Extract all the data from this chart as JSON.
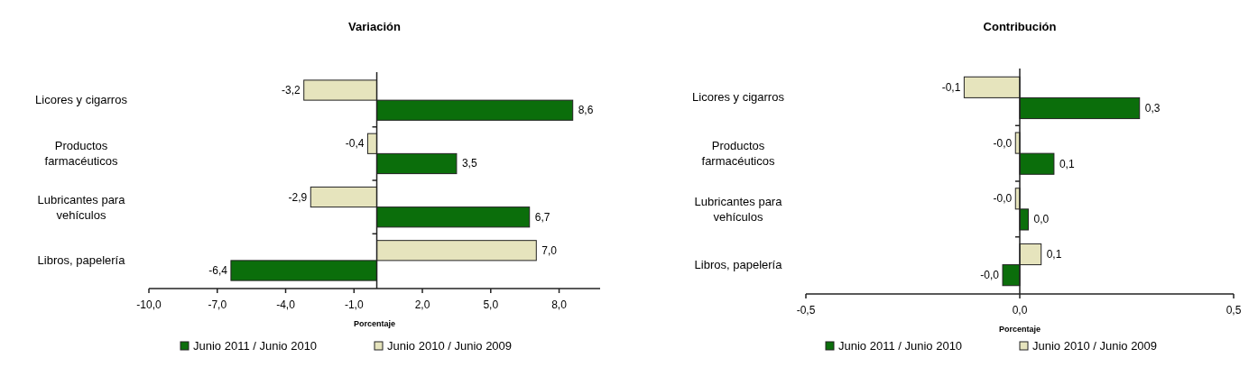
{
  "chart_data": [
    {
      "type": "bar",
      "orientation": "horizontal",
      "title": "Variación",
      "xlabel": "Porcentaje",
      "categories": [
        "Licores y cigarros",
        "Productos farmacéuticos",
        "Lubricantes para vehículos",
        "Libros, papelería"
      ],
      "xlim": [
        -10,
        9.8
      ],
      "xticks": [
        {
          "value": -10,
          "label": "-10,0"
        },
        {
          "value": -7,
          "label": "-7,0"
        },
        {
          "value": -4,
          "label": "-4,0"
        },
        {
          "value": -1,
          "label": "-1,0"
        },
        {
          "value": 2,
          "label": "2,0"
        },
        {
          "value": 5,
          "label": "5,0"
        },
        {
          "value": 8,
          "label": "8,0"
        }
      ],
      "legend": "bottom",
      "series": [
        {
          "name": "Junio 2011 / Junio 2010",
          "color": "#0b6e0b",
          "values": [
            8.6,
            3.5,
            6.7,
            -6.4
          ],
          "value_labels": [
            "8,6",
            "3,5",
            "6,7",
            "-6,4"
          ]
        },
        {
          "name": "Junio 2010 / Junio 2009",
          "color": "#e6e4bd",
          "values": [
            -3.2,
            -0.4,
            -2.9,
            7.0
          ],
          "value_labels": [
            "-3,2",
            "-0,4",
            "-2,9",
            "7,0"
          ]
        }
      ]
    },
    {
      "type": "bar",
      "orientation": "horizontal",
      "title": "Contribución",
      "xlabel": "Porcentaje",
      "categories": [
        "Licores y cigarros",
        "Productos farmacéuticos",
        "Lubricantes para vehículos",
        "Libros, papelería"
      ],
      "xlim": [
        -0.5,
        0.5
      ],
      "xticks": [
        {
          "value": -0.5,
          "label": "-0,5"
        },
        {
          "value": 0,
          "label": "0,0"
        },
        {
          "value": 0.5,
          "label": "0,5"
        }
      ],
      "legend": "bottom",
      "series": [
        {
          "name": "Junio 2011 / Junio 2010",
          "color": "#0b6e0b",
          "values": [
            0.28,
            0.08,
            0.02,
            -0.04
          ],
          "value_labels": [
            "0,3",
            "0,1",
            "0,0",
            "-0,0"
          ]
        },
        {
          "name": "Junio 2010 / Junio 2009",
          "color": "#e6e4bd",
          "values": [
            -0.13,
            -0.01,
            -0.01,
            0.05
          ],
          "value_labels": [
            "-0,1",
            "-0,0",
            "-0,0",
            "0,1"
          ]
        }
      ]
    }
  ]
}
